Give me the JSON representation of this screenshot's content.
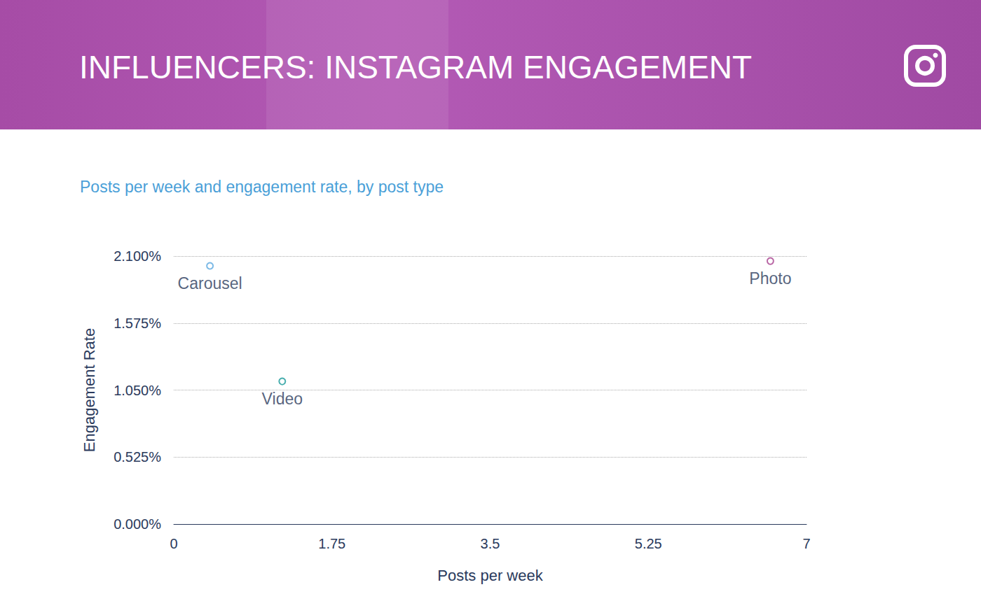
{
  "chart_data": {
    "type": "scatter",
    "title": "INFLUENCERS: INSTAGRAM ENGAGEMENT",
    "subtitle": "Posts per week and engagement rate, by post type",
    "x_label": "Posts per week",
    "y_label": "Engagement Rate",
    "series": [
      {
        "name": "Carousel",
        "color": "#5aa7e0",
        "values": [
          [
            0.4,
            2.023
          ]
        ]
      },
      {
        "name": "Video",
        "color": "#1a9a9a",
        "values": [
          [
            1.2,
            1.118
          ]
        ]
      },
      {
        "name": "Photo",
        "color": "#a8418f",
        "values": [
          [
            6.6,
            2.061
          ]
        ]
      }
    ],
    "xlim": [
      0,
      7
    ],
    "xticks": [
      0,
      1.75,
      3.5,
      5.25,
      7
    ],
    "ylim": [
      0,
      2.1
    ],
    "yticks": [
      {
        "value": 0,
        "label": "0.000%"
      },
      {
        "value": 0.525,
        "label": "0.525%"
      },
      {
        "value": 1.05,
        "label": "1.050%"
      },
      {
        "value": 1.575,
        "label": "1.575%"
      },
      {
        "value": 2.1,
        "label": "2.100%"
      }
    ],
    "grid": true,
    "marker": "circle"
  }
}
